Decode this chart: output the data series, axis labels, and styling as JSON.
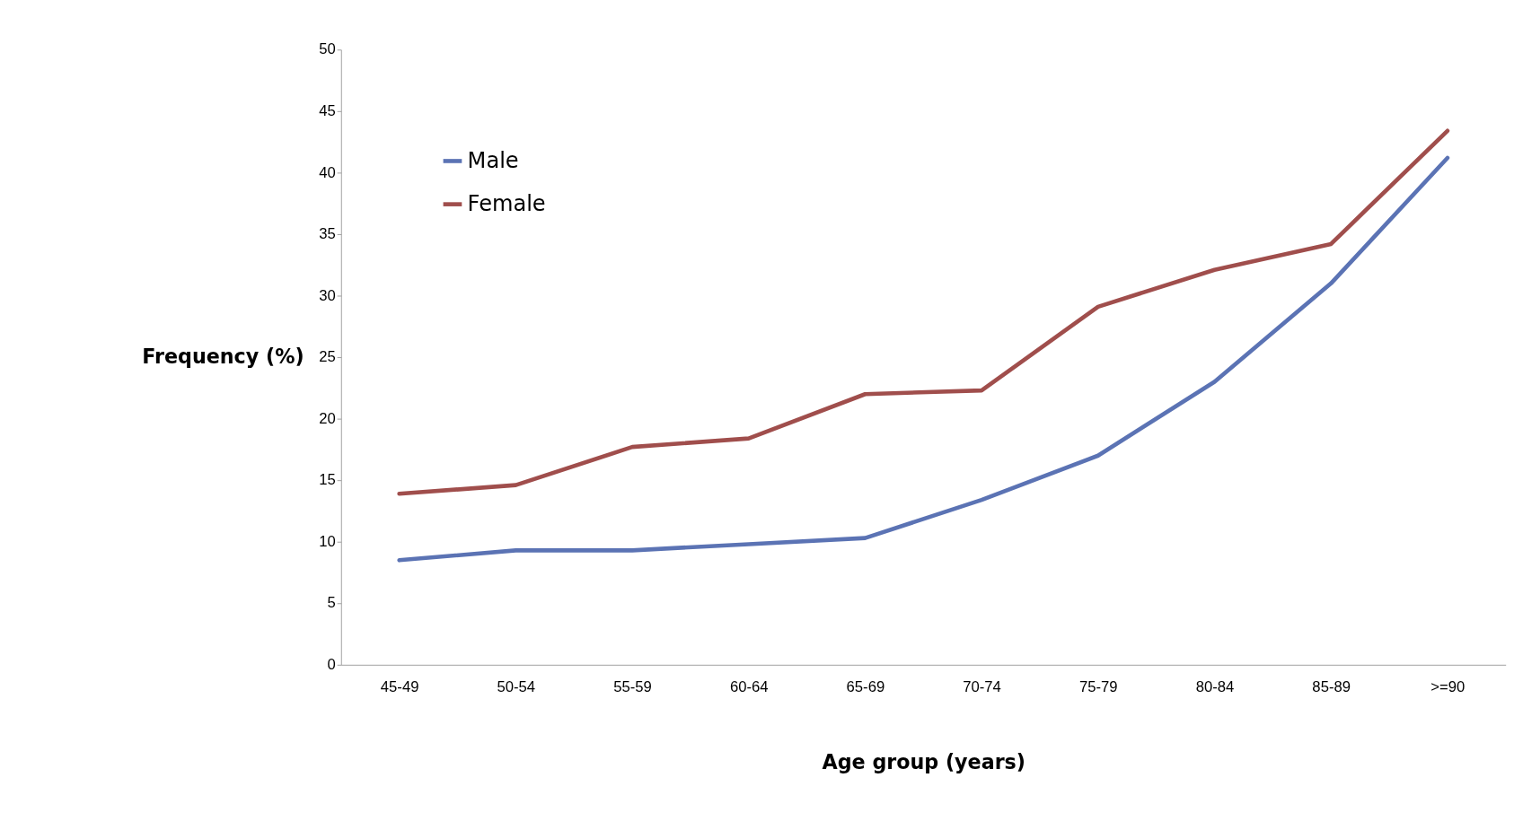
{
  "chart_data": {
    "type": "line",
    "xlabel": "Age group (years)",
    "ylabel": "Frequency (%)",
    "categories": [
      "45-49",
      "50-54",
      "55-59",
      "60-64",
      "65-69",
      "70-74",
      "75-79",
      "80-84",
      "85-89",
      ">=90"
    ],
    "series": [
      {
        "name": "Male",
        "color": "#5b73b4",
        "values": [
          8.5,
          9.3,
          9.3,
          9.8,
          10.3,
          13.4,
          17.0,
          23.0,
          31.0,
          41.2
        ]
      },
      {
        "name": "Female",
        "color": "#a04e4c",
        "values": [
          13.9,
          14.6,
          17.7,
          18.4,
          22.0,
          22.3,
          29.1,
          32.1,
          34.2,
          43.4
        ]
      }
    ],
    "ylim": [
      0,
      50
    ],
    "yticks": [
      0,
      5,
      10,
      15,
      20,
      25,
      30,
      35,
      40,
      45,
      50
    ],
    "grid": false,
    "legend": "top left",
    "marker": "none",
    "line_style": "solid"
  }
}
